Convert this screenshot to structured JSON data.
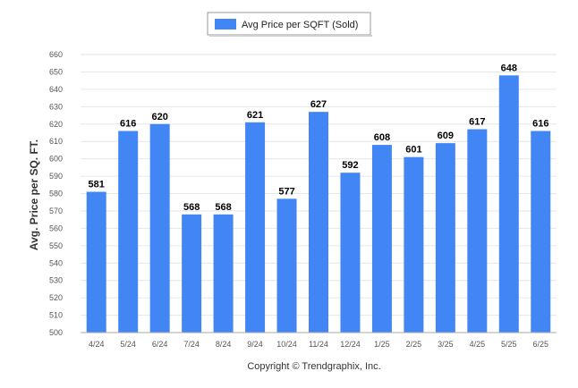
{
  "chart_data": {
    "type": "bar",
    "categories": [
      "4/24",
      "5/24",
      "6/24",
      "7/24",
      "8/24",
      "9/24",
      "10/24",
      "11/24",
      "12/24",
      "1/25",
      "2/25",
      "3/25",
      "4/25",
      "5/25",
      "6/25"
    ],
    "series": [
      {
        "name": "Avg Price per SQFT (Sold)",
        "values": [
          581,
          616,
          620,
          568,
          568,
          621,
          577,
          627,
          592,
          608,
          601,
          609,
          617,
          648,
          616
        ]
      }
    ],
    "ylabel": "Avg. Price per SQ. FT.",
    "xlabel": "",
    "ylim": [
      500,
      660
    ],
    "yticks": [
      500,
      510,
      520,
      530,
      540,
      550,
      560,
      570,
      580,
      590,
      600,
      610,
      620,
      630,
      640,
      650,
      660
    ],
    "grid": true,
    "legend_position": "top-center",
    "data_labels": true,
    "bar_color": "#4285F4",
    "credit": "Copyright © Trendgraphix, Inc."
  }
}
